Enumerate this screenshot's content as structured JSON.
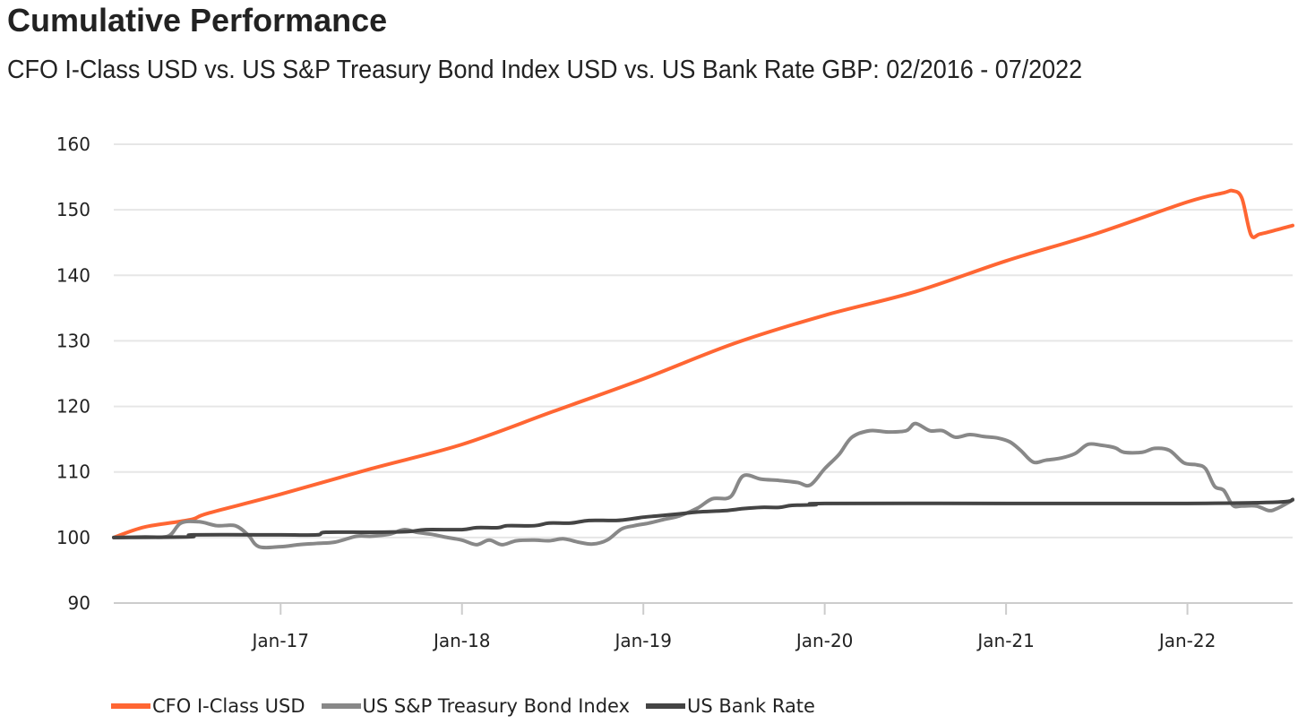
{
  "title": "Cumulative Performance",
  "subtitle": "CFO I-Class USD vs. US S&P Treasury Bond Index USD vs. US Bank Rate GBP: 02/2016 - 07/2022",
  "chart_data": {
    "type": "line",
    "title": "Cumulative Performance",
    "xlabel": "",
    "ylabel": "",
    "ylim": [
      90,
      160
    ],
    "yticks": [
      90,
      100,
      110,
      120,
      130,
      140,
      150,
      160
    ],
    "xlim": [
      2016.08,
      2022.58
    ],
    "xticks": [
      {
        "label": "Jan-17",
        "value": 2017.0
      },
      {
        "label": "Jan-18",
        "value": 2018.0
      },
      {
        "label": "Jan-19",
        "value": 2019.0
      },
      {
        "label": "Jan-20",
        "value": 2020.0
      },
      {
        "label": "Jan-21",
        "value": 2021.0
      },
      {
        "label": "Jan-22",
        "value": 2022.0
      }
    ],
    "grid": true,
    "legend_position": "bottom",
    "series": [
      {
        "name": "CFO I-Class USD",
        "color": "#ff6633",
        "points": [
          [
            2016.08,
            100.0
          ],
          [
            2016.25,
            101.6
          ],
          [
            2016.5,
            102.7
          ],
          [
            2016.6,
            103.7
          ],
          [
            2017.0,
            106.6
          ],
          [
            2017.5,
            110.5
          ],
          [
            2018.0,
            114.2
          ],
          [
            2018.5,
            119.2
          ],
          [
            2019.0,
            124.2
          ],
          [
            2019.5,
            129.6
          ],
          [
            2020.0,
            133.9
          ],
          [
            2020.5,
            137.5
          ],
          [
            2021.0,
            142.2
          ],
          [
            2021.5,
            146.4
          ],
          [
            2022.0,
            151.2
          ],
          [
            2022.2,
            152.6
          ],
          [
            2022.25,
            152.9
          ],
          [
            2022.3,
            151.8
          ],
          [
            2022.35,
            146.2
          ],
          [
            2022.4,
            146.3
          ],
          [
            2022.5,
            147.0
          ],
          [
            2022.58,
            147.6
          ]
        ]
      },
      {
        "name": "US S&P Treasury Bond Index",
        "color": "#888888",
        "points": [
          [
            2016.08,
            100.0
          ],
          [
            2016.25,
            100.1
          ],
          [
            2016.38,
            100.2
          ],
          [
            2016.45,
            102.2
          ],
          [
            2016.55,
            102.4
          ],
          [
            2016.65,
            101.8
          ],
          [
            2016.75,
            101.8
          ],
          [
            2016.82,
            100.4
          ],
          [
            2016.88,
            98.6
          ],
          [
            2017.0,
            98.6
          ],
          [
            2017.1,
            98.9
          ],
          [
            2017.2,
            99.1
          ],
          [
            2017.3,
            99.3
          ],
          [
            2017.42,
            100.2
          ],
          [
            2017.5,
            100.2
          ],
          [
            2017.6,
            100.5
          ],
          [
            2017.68,
            101.2
          ],
          [
            2017.75,
            100.8
          ],
          [
            2017.83,
            100.5
          ],
          [
            2017.9,
            100.1
          ],
          [
            2018.0,
            99.6
          ],
          [
            2018.08,
            98.9
          ],
          [
            2018.15,
            99.6
          ],
          [
            2018.22,
            98.9
          ],
          [
            2018.3,
            99.5
          ],
          [
            2018.4,
            99.6
          ],
          [
            2018.48,
            99.5
          ],
          [
            2018.56,
            99.8
          ],
          [
            2018.64,
            99.3
          ],
          [
            2018.72,
            99.0
          ],
          [
            2018.8,
            99.6
          ],
          [
            2018.88,
            101.3
          ],
          [
            2018.95,
            101.8
          ],
          [
            2019.03,
            102.2
          ],
          [
            2019.12,
            102.8
          ],
          [
            2019.2,
            103.3
          ],
          [
            2019.3,
            104.5
          ],
          [
            2019.38,
            105.9
          ],
          [
            2019.48,
            106.2
          ],
          [
            2019.55,
            109.4
          ],
          [
            2019.65,
            108.9
          ],
          [
            2019.75,
            108.7
          ],
          [
            2019.85,
            108.4
          ],
          [
            2019.92,
            108.0
          ],
          [
            2020.0,
            110.5
          ],
          [
            2020.08,
            112.7
          ],
          [
            2020.15,
            115.3
          ],
          [
            2020.25,
            116.3
          ],
          [
            2020.35,
            116.1
          ],
          [
            2020.45,
            116.3
          ],
          [
            2020.5,
            117.4
          ],
          [
            2020.58,
            116.3
          ],
          [
            2020.65,
            116.3
          ],
          [
            2020.72,
            115.3
          ],
          [
            2020.8,
            115.7
          ],
          [
            2020.88,
            115.4
          ],
          [
            2020.95,
            115.2
          ],
          [
            2021.02,
            114.6
          ],
          [
            2021.08,
            113.3
          ],
          [
            2021.15,
            111.5
          ],
          [
            2021.22,
            111.8
          ],
          [
            2021.3,
            112.1
          ],
          [
            2021.38,
            112.8
          ],
          [
            2021.45,
            114.2
          ],
          [
            2021.52,
            114.1
          ],
          [
            2021.6,
            113.7
          ],
          [
            2021.65,
            113.0
          ],
          [
            2021.75,
            113.0
          ],
          [
            2021.82,
            113.6
          ],
          [
            2021.9,
            113.3
          ],
          [
            2021.98,
            111.4
          ],
          [
            2022.05,
            111.1
          ],
          [
            2022.1,
            110.5
          ],
          [
            2022.15,
            107.8
          ],
          [
            2022.2,
            107.2
          ],
          [
            2022.25,
            104.9
          ],
          [
            2022.3,
            104.8
          ],
          [
            2022.38,
            104.8
          ],
          [
            2022.45,
            104.1
          ],
          [
            2022.5,
            104.5
          ],
          [
            2022.58,
            105.7
          ]
        ]
      },
      {
        "name": "US Bank Rate",
        "color": "#444444",
        "points": [
          [
            2016.08,
            100.0
          ],
          [
            2016.5,
            100.1
          ],
          [
            2016.52,
            100.4
          ],
          [
            2017.0,
            100.4
          ],
          [
            2017.2,
            100.4
          ],
          [
            2017.25,
            100.8
          ],
          [
            2017.5,
            100.8
          ],
          [
            2017.7,
            100.9
          ],
          [
            2017.8,
            101.2
          ],
          [
            2018.0,
            101.2
          ],
          [
            2018.08,
            101.5
          ],
          [
            2018.2,
            101.5
          ],
          [
            2018.25,
            101.8
          ],
          [
            2018.4,
            101.8
          ],
          [
            2018.48,
            102.2
          ],
          [
            2018.6,
            102.2
          ],
          [
            2018.7,
            102.6
          ],
          [
            2018.85,
            102.6
          ],
          [
            2018.95,
            102.9
          ],
          [
            2019.0,
            103.1
          ],
          [
            2019.08,
            103.3
          ],
          [
            2019.2,
            103.6
          ],
          [
            2019.3,
            103.9
          ],
          [
            2019.45,
            104.1
          ],
          [
            2019.55,
            104.4
          ],
          [
            2019.65,
            104.6
          ],
          [
            2019.75,
            104.6
          ],
          [
            2019.82,
            104.9
          ],
          [
            2019.95,
            105.0
          ],
          [
            2020.0,
            105.2
          ],
          [
            2021.0,
            105.2
          ],
          [
            2022.0,
            105.2
          ],
          [
            2022.5,
            105.4
          ],
          [
            2022.58,
            105.8
          ]
        ]
      }
    ]
  }
}
